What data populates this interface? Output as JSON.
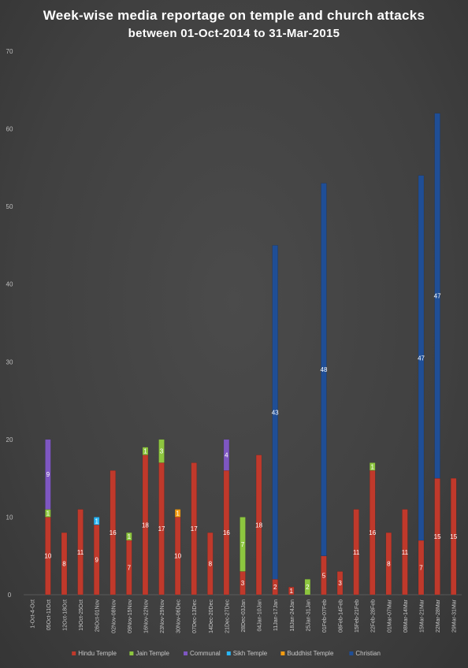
{
  "chart_data": {
    "type": "bar",
    "stacked": true,
    "title": "Week-wise media reportage on temple and church attacks",
    "subtitle": "between 01-Oct-2014 to 31-Mar-2015",
    "ylim": [
      0,
      70
    ],
    "yticks": [
      0,
      10,
      20,
      30,
      40,
      50,
      60,
      70
    ],
    "grid": false,
    "legend_position": "bottom",
    "categories": [
      "1-Oct-4-Oct",
      "05Oct-11Oct",
      "12Oct-18Oct",
      "19Oct-25Oct",
      "26Oct-01Nov",
      "02Nov-08Nov",
      "09Nov-15Nov",
      "16Nov-22Nov",
      "23Nov-29Nov",
      "30Nov-06Dec",
      "07Dec-13Dec",
      "14Dec-20Dec",
      "21Dec-27Dec",
      "28Dec-03Jan",
      "04Jan-10Jan",
      "11Jan-17Jan",
      "18Jan-24Jan",
      "25Jan-31Jan",
      "01Feb-07Feb",
      "08Feb-14Feb",
      "15Feb-21Feb",
      "22Feb-28Feb",
      "01Mar-07Mar",
      "08Mar-14Mar",
      "15Mar-21Mar",
      "22Mar-28Mar",
      "29Mar-31Mar"
    ],
    "series": [
      {
        "name": "Hindu Temple",
        "color": "#c0392b",
        "values": [
          0,
          10,
          8,
          11,
          9,
          16,
          7,
          18,
          17,
          10,
          17,
          8,
          16,
          3,
          18,
          2,
          1,
          0,
          5,
          3,
          11,
          16,
          8,
          11,
          7,
          15,
          15
        ]
      },
      {
        "name": "Jain Temple",
        "color": "#8dc63f",
        "values": [
          0,
          1,
          0,
          0,
          0,
          0,
          1,
          1,
          3,
          0,
          0,
          0,
          0,
          7,
          0,
          0,
          0,
          2,
          0,
          0,
          0,
          1,
          0,
          0,
          0,
          0,
          0
        ]
      },
      {
        "name": "Communal",
        "color": "#7e57c2",
        "values": [
          0,
          9,
          0,
          0,
          0,
          0,
          0,
          0,
          0,
          0,
          0,
          0,
          4,
          0,
          0,
          0,
          0,
          0,
          0,
          0,
          0,
          0,
          0,
          0,
          0,
          0,
          0
        ]
      },
      {
        "name": "Sikh Temple",
        "color": "#29b6f6",
        "values": [
          0,
          0,
          0,
          0,
          1,
          0,
          0,
          0,
          0,
          0,
          0,
          0,
          0,
          0,
          0,
          0,
          0,
          0,
          0,
          0,
          0,
          0,
          0,
          0,
          0,
          0,
          0
        ]
      },
      {
        "name": "Buddhist Temple",
        "color": "#f39c12",
        "values": [
          0,
          0,
          0,
          0,
          0,
          0,
          0,
          0,
          0,
          1,
          0,
          0,
          0,
          0,
          0,
          0,
          0,
          0,
          0,
          0,
          0,
          0,
          0,
          0,
          0,
          0,
          0
        ]
      },
      {
        "name": "Christian",
        "color": "#1f4e96",
        "values": [
          0,
          0,
          0,
          0,
          0,
          0,
          0,
          0,
          0,
          0,
          0,
          0,
          0,
          0,
          0,
          43,
          0,
          0,
          48,
          0,
          0,
          0,
          0,
          0,
          47,
          47,
          0
        ]
      }
    ]
  }
}
